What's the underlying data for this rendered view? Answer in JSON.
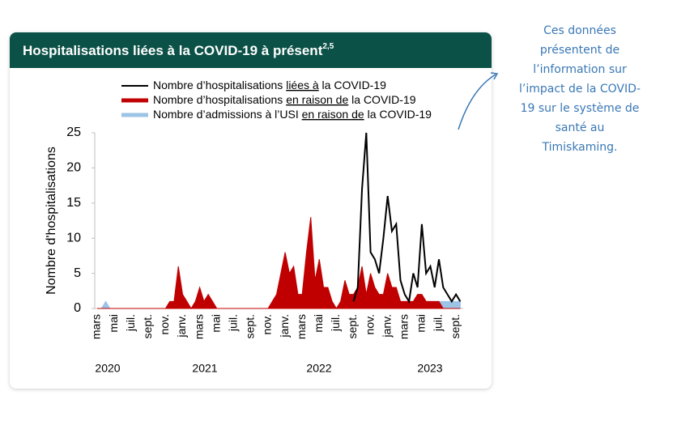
{
  "chart_data": {
    "type": "line",
    "title": "Hospitalisations liées à la COVID-19 à présent",
    "title_superscript": "2,5",
    "y_label": "Nombre d'hospitalisations",
    "categories": [
      "mars",
      null,
      null,
      null,
      "mai",
      null,
      null,
      null,
      "juil.",
      null,
      null,
      null,
      "sept.",
      null,
      null,
      null,
      "nov.",
      null,
      null,
      null,
      "janv.",
      null,
      null,
      null,
      "mars",
      null,
      null,
      null,
      "mai",
      null,
      null,
      null,
      "juil.",
      null,
      null,
      null,
      "sept.",
      null,
      null,
      null,
      "nov.",
      null,
      null,
      null,
      "janv.",
      null,
      null,
      null,
      "mars",
      null,
      null,
      null,
      "mai",
      null,
      null,
      null,
      "juil.",
      null,
      null,
      null,
      "sept.",
      null,
      null,
      null,
      "nov.",
      null,
      null,
      null,
      "janv.",
      null,
      null,
      null,
      "mars",
      null,
      null,
      null,
      "mai",
      null,
      null,
      null,
      "juil.",
      null,
      null,
      null,
      "sept.",
      null
    ],
    "year_labels": [
      "2020",
      "2021",
      "2022",
      "2023"
    ],
    "series": [
      {
        "name": "Nombre d’hospitalisations liées à la COVID-19",
        "underline": "liées à",
        "color": "#000000",
        "kind": "line",
        "values": [
          null,
          null,
          null,
          null,
          null,
          null,
          null,
          null,
          null,
          null,
          null,
          null,
          null,
          null,
          null,
          null,
          null,
          null,
          null,
          null,
          null,
          null,
          null,
          null,
          null,
          null,
          null,
          null,
          null,
          null,
          null,
          null,
          null,
          null,
          null,
          null,
          null,
          null,
          null,
          null,
          null,
          null,
          null,
          null,
          null,
          null,
          null,
          null,
          null,
          null,
          null,
          null,
          null,
          null,
          null,
          null,
          null,
          null,
          null,
          null,
          1,
          3,
          17,
          25,
          8,
          7,
          5,
          10,
          16,
          11,
          12,
          4,
          2,
          1,
          5,
          3,
          12,
          5,
          6,
          3,
          7,
          3,
          2,
          1,
          2,
          1
        ]
      },
      {
        "name": "Nombre d’hospitalisations en raison de la COVID-19",
        "underline": "en raison de",
        "color": "#c00000",
        "kind": "area",
        "values": [
          0,
          0,
          0,
          0,
          0,
          0,
          0,
          0,
          0,
          0,
          0,
          0,
          0,
          0,
          0,
          0,
          0,
          1,
          1,
          6,
          2,
          1,
          0,
          1,
          3,
          1,
          2,
          1,
          0,
          0,
          0,
          0,
          0,
          0,
          0,
          0,
          0,
          0,
          0,
          0,
          0,
          1,
          2,
          5,
          8,
          5,
          6,
          2,
          2,
          8,
          13,
          4,
          7,
          3,
          3,
          1,
          0,
          1,
          4,
          2,
          2,
          3,
          6,
          2,
          5,
          3,
          2,
          2,
          5,
          3,
          3,
          1,
          1,
          1,
          1,
          2,
          2,
          1,
          1,
          1,
          1,
          0,
          0,
          0,
          0,
          0
        ]
      },
      {
        "name": "Nombre d’admissions à l’USI en raison de la COVID-19",
        "underline": "en raison de",
        "color": "#9dc3e6",
        "kind": "area",
        "values": [
          0,
          0,
          1,
          0,
          0,
          0,
          0,
          0,
          0,
          0,
          0,
          0,
          0,
          0,
          0,
          0,
          0,
          0,
          0,
          1,
          1,
          0,
          0,
          0,
          1,
          0,
          0,
          0,
          0,
          0,
          0,
          0,
          0,
          0,
          0,
          0,
          0,
          0,
          0,
          0,
          0,
          0,
          2,
          2,
          4,
          2,
          2,
          1,
          1,
          2,
          3,
          2,
          2,
          1,
          1,
          0,
          0,
          0,
          1,
          1,
          1,
          1,
          2,
          1,
          1,
          1,
          1,
          1,
          2,
          1,
          1,
          1,
          1,
          1,
          1,
          1,
          1,
          1,
          1,
          1,
          1,
          1,
          1,
          1,
          1,
          1
        ]
      }
    ],
    "ylim": [
      0,
      25
    ],
    "yticks": [
      0,
      5,
      10,
      15,
      20,
      25
    ],
    "annotation": [
      "Ces données",
      "présentent de",
      "l’information sur",
      "l’impact de la COVID-",
      "19 sur le système de",
      "santé au",
      "Timiskaming."
    ]
  }
}
